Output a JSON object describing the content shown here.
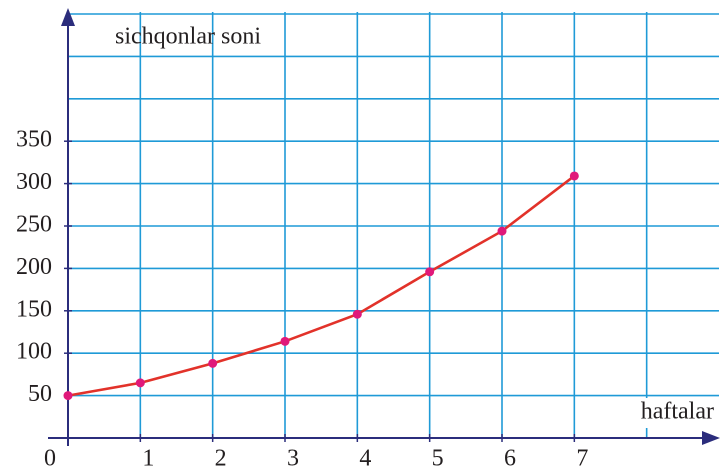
{
  "chart_data": {
    "type": "line",
    "y_label": "sichqonlar soni",
    "x_label": "haftalar",
    "x": [
      0,
      1,
      2,
      3,
      4,
      5,
      6,
      7
    ],
    "series": [
      {
        "name": "sichqonlar soni",
        "color": "#e2322a",
        "marker_color": "#e0197a",
        "values": [
          50,
          65,
          88,
          114,
          146,
          196,
          244,
          309
        ]
      }
    ],
    "xlim": [
      0,
      9
    ],
    "ylim": [
      0,
      500
    ],
    "xticks": [
      0,
      1,
      2,
      3,
      4,
      5,
      6,
      7
    ],
    "yticks": [
      50,
      100,
      150,
      200,
      250,
      300,
      350
    ],
    "xgrid": [
      1,
      2,
      3,
      4,
      5,
      6,
      7,
      8
    ],
    "ygrid": [
      50,
      100,
      150,
      200,
      250,
      300,
      350,
      400,
      450,
      500
    ],
    "grid": true,
    "axis_color": "#2b2d7c"
  }
}
